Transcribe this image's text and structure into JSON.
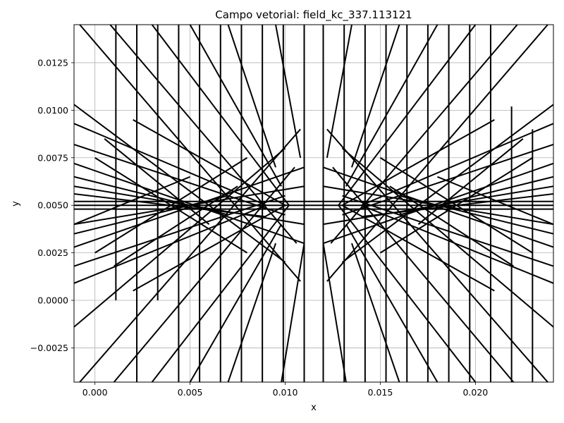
{
  "chart_data": {
    "type": "line",
    "title": "Campo vetorial: field_kc_337.113121",
    "xlabel": "x",
    "ylabel": "y",
    "xlim": [
      -0.0011,
      0.0241
    ],
    "ylim": [
      -0.0043,
      0.0145
    ],
    "grid": true,
    "xticks": [
      0.0,
      0.005,
      0.01,
      0.015,
      0.02
    ],
    "xtick_labels": [
      "0.000",
      "0.005",
      "0.010",
      "0.015",
      "0.020"
    ],
    "yticks": [
      -0.0025,
      0.0,
      0.0025,
      0.005,
      0.0075,
      0.01,
      0.0125
    ],
    "ytick_labels": [
      "−0.0025",
      "0.0000",
      "0.0025",
      "0.0050",
      "0.0075",
      "0.0100",
      "0.0125"
    ],
    "line_color": "#000000",
    "grid_color": "#b0b0b0",
    "series": [
      {
        "x": [
          -0.0011,
          0.0241
        ],
        "y": [
          0.0048,
          0.0048
        ]
      },
      {
        "x": [
          -0.0011,
          0.0241
        ],
        "y": [
          0.0052,
          0.0052
        ]
      },
      {
        "x": [
          -0.0011,
          0.0241
        ],
        "y": [
          0.005,
          0.005
        ]
      },
      {
        "x": [
          -0.0011,
          0.011
        ],
        "y": [
          0.006,
          0.004
        ]
      },
      {
        "x": [
          -0.0011,
          0.011
        ],
        "y": [
          0.004,
          0.006
        ]
      },
      {
        "x": [
          0.012,
          0.0241
        ],
        "y": [
          0.004,
          0.006
        ]
      },
      {
        "x": [
          0.012,
          0.0241
        ],
        "y": [
          0.006,
          0.004
        ]
      },
      {
        "x": [
          -0.0011,
          0.011
        ],
        "y": [
          0.0072,
          0.003
        ]
      },
      {
        "x": [
          -0.0011,
          0.011
        ],
        "y": [
          0.0028,
          0.007
        ]
      },
      {
        "x": [
          0.012,
          0.0241
        ],
        "y": [
          0.003,
          0.0072
        ]
      },
      {
        "x": [
          0.012,
          0.0241
        ],
        "y": [
          0.007,
          0.0028
        ]
      },
      {
        "x": [
          -0.0011,
          0.01
        ],
        "y": [
          0.0082,
          0.0045
        ]
      },
      {
        "x": [
          -0.0011,
          0.01
        ],
        "y": [
          0.0018,
          0.0055
        ]
      },
      {
        "x": [
          0.013,
          0.0241
        ],
        "y": [
          0.0045,
          0.0082
        ]
      },
      {
        "x": [
          0.013,
          0.0241
        ],
        "y": [
          0.0055,
          0.0018
        ]
      },
      {
        "x": [
          -0.0011,
          0.009
        ],
        "y": [
          0.0093,
          0.005
        ]
      },
      {
        "x": [
          -0.0011,
          0.009
        ],
        "y": [
          0.0009,
          0.005
        ]
      },
      {
        "x": [
          0.014,
          0.0241
        ],
        "y": [
          0.005,
          0.0093
        ]
      },
      {
        "x": [
          0.014,
          0.0241
        ],
        "y": [
          0.005,
          0.0009
        ]
      },
      {
        "x": [
          -0.0011,
          0.01
        ],
        "y": [
          0.0103,
          0.002
        ]
      },
      {
        "x": [
          -0.0011,
          0.01
        ],
        "y": [
          -0.0014,
          0.008
        ]
      },
      {
        "x": [
          0.013,
          0.0241
        ],
        "y": [
          0.002,
          0.0103
        ]
      },
      {
        "x": [
          0.013,
          0.0241
        ],
        "y": [
          0.008,
          -0.0014
        ]
      },
      {
        "x": [
          -0.0008,
          0.0108
        ],
        "y": [
          0.0145,
          0.001
        ]
      },
      {
        "x": [
          -0.0008,
          0.0108
        ],
        "y": [
          -0.0043,
          0.009
        ]
      },
      {
        "x": [
          0.0122,
          0.0238
        ],
        "y": [
          0.001,
          0.0145
        ]
      },
      {
        "x": [
          0.0122,
          0.0238
        ],
        "y": [
          0.009,
          -0.0043
        ]
      },
      {
        "x": [
          0.0008,
          0.0106
        ],
        "y": [
          0.0145,
          0.003
        ]
      },
      {
        "x": [
          0.001,
          0.0105
        ],
        "y": [
          -0.0043,
          0.007
        ]
      },
      {
        "x": [
          0.0124,
          0.0222
        ],
        "y": [
          0.003,
          0.0145
        ]
      },
      {
        "x": [
          0.0125,
          0.022
        ],
        "y": [
          0.007,
          -0.0043
        ]
      },
      {
        "x": [
          0.003,
          0.0102
        ],
        "y": [
          0.0145,
          0.005
        ]
      },
      {
        "x": [
          0.003,
          0.0102
        ],
        "y": [
          -0.0043,
          0.005
        ]
      },
      {
        "x": [
          0.0128,
          0.02
        ],
        "y": [
          0.005,
          0.0145
        ]
      },
      {
        "x": [
          0.0128,
          0.02
        ],
        "y": [
          0.005,
          -0.0043
        ]
      },
      {
        "x": [
          0.005,
          0.0098
        ],
        "y": [
          0.0145,
          0.006
        ]
      },
      {
        "x": [
          0.005,
          0.0098
        ],
        "y": [
          -0.0043,
          0.004
        ]
      },
      {
        "x": [
          0.0132,
          0.018
        ],
        "y": [
          0.006,
          0.0145
        ]
      },
      {
        "x": [
          0.0132,
          0.018
        ],
        "y": [
          0.004,
          -0.0043
        ]
      },
      {
        "x": [
          0.007,
          0.0095
        ],
        "y": [
          0.0145,
          0.007
        ]
      },
      {
        "x": [
          0.007,
          0.0095
        ],
        "y": [
          -0.0043,
          0.003
        ]
      },
      {
        "x": [
          0.0135,
          0.016
        ],
        "y": [
          0.007,
          0.0145
        ]
      },
      {
        "x": [
          0.0135,
          0.016
        ],
        "y": [
          0.003,
          -0.0043
        ]
      },
      {
        "x": [
          0.0095,
          0.0108
        ],
        "y": [
          0.0145,
          0.0075
        ]
      },
      {
        "x": [
          0.0098,
          0.011
        ],
        "y": [
          -0.0043,
          0.003
        ]
      },
      {
        "x": [
          0.0122,
          0.0135
        ],
        "y": [
          0.0075,
          0.0145
        ]
      },
      {
        "x": [
          0.012,
          0.0132
        ],
        "y": [
          0.003,
          -0.0043
        ]
      },
      {
        "x": [
          0.0,
          0.008
        ],
        "y": [
          0.0075,
          0.0025
        ]
      },
      {
        "x": [
          0.0,
          0.008
        ],
        "y": [
          0.0025,
          0.0075
        ]
      },
      {
        "x": [
          0.015,
          0.023
        ],
        "y": [
          0.0025,
          0.0075
        ]
      },
      {
        "x": [
          0.015,
          0.023
        ],
        "y": [
          0.0075,
          0.0025
        ]
      },
      {
        "x": [
          -0.0011,
          0.007
        ],
        "y": [
          0.0065,
          0.0045
        ]
      },
      {
        "x": [
          -0.0011,
          0.007
        ],
        "y": [
          0.0035,
          0.0055
        ]
      },
      {
        "x": [
          0.016,
          0.0241
        ],
        "y": [
          0.0045,
          0.0065
        ]
      },
      {
        "x": [
          0.016,
          0.0241
        ],
        "y": [
          0.0055,
          0.0035
        ]
      },
      {
        "x": [
          -0.0011,
          0.009
        ],
        "y": [
          0.0056,
          0.0044
        ]
      },
      {
        "x": [
          0.014,
          0.0241
        ],
        "y": [
          0.0044,
          0.0056
        ]
      },
      {
        "x": [
          0.0005,
          0.006
        ],
        "y": [
          0.0085,
          0.004
        ]
      },
      {
        "x": [
          0.017,
          0.0225
        ],
        "y": [
          0.004,
          0.0085
        ]
      },
      {
        "x": [
          0.001,
          0.0075
        ],
        "y": [
          0.0018,
          0.006
        ]
      },
      {
        "x": [
          0.0155,
          0.022
        ],
        "y": [
          0.006,
          0.0018
        ]
      },
      {
        "x": [
          -0.0011,
          0.005
        ],
        "y": [
          0.004,
          0.0065
        ]
      },
      {
        "x": [
          0.018,
          0.0241
        ],
        "y": [
          0.0065,
          0.004
        ]
      },
      {
        "x": [
          0.002,
          0.01
        ],
        "y": [
          0.0095,
          0.005
        ]
      },
      {
        "x": [
          0.013,
          0.021
        ],
        "y": [
          0.005,
          0.0095
        ]
      },
      {
        "x": [
          0.002,
          0.01
        ],
        "y": [
          0.0005,
          0.005
        ]
      },
      {
        "x": [
          0.013,
          0.021
        ],
        "y": [
          0.005,
          0.0005
        ]
      }
    ],
    "vlines": [
      {
        "x": 0.0011,
        "y": [
          0.0,
          0.0145
        ]
      },
      {
        "x": 0.0022,
        "y": [
          -0.0043,
          0.0145
        ]
      },
      {
        "x": 0.0033,
        "y": [
          0.0,
          0.0145
        ]
      },
      {
        "x": 0.0044,
        "y": [
          -0.0043,
          0.0145
        ]
      },
      {
        "x": 0.0055,
        "y": [
          -0.0043,
          0.0145
        ]
      },
      {
        "x": 0.0066,
        "y": [
          -0.0043,
          0.0145
        ]
      },
      {
        "x": 0.0077,
        "y": [
          -0.0043,
          0.0145
        ]
      },
      {
        "x": 0.0088,
        "y": [
          -0.0043,
          0.0145
        ]
      },
      {
        "x": 0.0099,
        "y": [
          -0.0043,
          0.0145
        ]
      },
      {
        "x": 0.011,
        "y": [
          -0.0043,
          0.0145
        ]
      },
      {
        "x": 0.012,
        "y": [
          -0.0043,
          0.0145
        ]
      },
      {
        "x": 0.0131,
        "y": [
          -0.0043,
          0.0145
        ]
      },
      {
        "x": 0.0142,
        "y": [
          -0.0043,
          0.0145
        ]
      },
      {
        "x": 0.0153,
        "y": [
          -0.0043,
          0.0145
        ]
      },
      {
        "x": 0.0164,
        "y": [
          -0.0043,
          0.0145
        ]
      },
      {
        "x": 0.0175,
        "y": [
          -0.0043,
          0.0145
        ]
      },
      {
        "x": 0.0186,
        "y": [
          -0.0043,
          0.0145
        ]
      },
      {
        "x": 0.0197,
        "y": [
          -0.0043,
          0.0145
        ]
      },
      {
        "x": 0.0208,
        "y": [
          -0.0043,
          0.0145
        ]
      },
      {
        "x": 0.0219,
        "y": [
          -0.0043,
          0.0102
        ]
      },
      {
        "x": 0.023,
        "y": [
          -0.0043,
          0.009
        ]
      }
    ]
  }
}
